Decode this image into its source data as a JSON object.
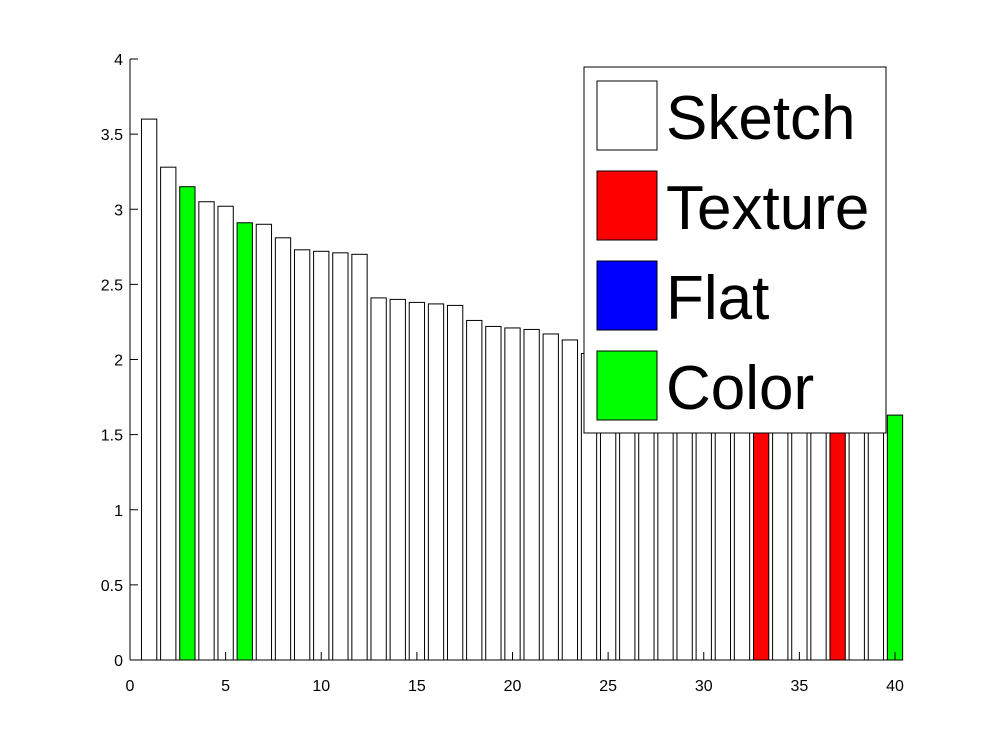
{
  "chart_data": {
    "type": "bar",
    "title": "",
    "xlabel": "",
    "ylabel": "",
    "xlim": [
      0,
      40
    ],
    "ylim": [
      0,
      4
    ],
    "xticks": [
      "0",
      "5",
      "10",
      "15",
      "20",
      "25",
      "30",
      "35",
      "40"
    ],
    "yticks": [
      "0",
      "0.5",
      "1",
      "1.5",
      "2",
      "2.5",
      "3",
      "3.5",
      "4"
    ],
    "grid": false,
    "legend_position": "top-right",
    "legend": [
      {
        "label": "Sketch",
        "color": "#ffffff"
      },
      {
        "label": "Texture",
        "color": "#ff0000"
      },
      {
        "label": "Flat",
        "color": "#0000ff"
      },
      {
        "label": "Color",
        "color": "#00ff00"
      }
    ],
    "categories": [
      1,
      2,
      3,
      4,
      5,
      6,
      7,
      8,
      9,
      10,
      11,
      12,
      13,
      14,
      15,
      16,
      17,
      18,
      19,
      20,
      21,
      22,
      23,
      24,
      25,
      26,
      27,
      28,
      29,
      30,
      31,
      32,
      33,
      34,
      35,
      36,
      37,
      38,
      39,
      40
    ],
    "values": [
      3.6,
      3.28,
      3.15,
      3.05,
      3.02,
      2.91,
      2.9,
      2.81,
      2.73,
      2.72,
      2.71,
      2.7,
      2.41,
      2.4,
      2.38,
      2.37,
      2.36,
      2.26,
      2.22,
      2.21,
      2.2,
      2.17,
      2.13,
      2.04,
      2.0,
      1.98,
      1.95,
      1.92,
      1.9,
      1.88,
      1.85,
      1.82,
      1.8,
      1.78,
      1.75,
      1.72,
      1.7,
      1.68,
      1.66,
      1.63
    ],
    "bar_types": [
      "Sketch",
      "Sketch",
      "Color",
      "Sketch",
      "Sketch",
      "Color",
      "Sketch",
      "Sketch",
      "Sketch",
      "Sketch",
      "Sketch",
      "Sketch",
      "Sketch",
      "Sketch",
      "Sketch",
      "Sketch",
      "Sketch",
      "Sketch",
      "Sketch",
      "Sketch",
      "Sketch",
      "Sketch",
      "Sketch",
      "Sketch",
      "Sketch",
      "Sketch",
      "Sketch",
      "Sketch",
      "Sketch",
      "Sketch",
      "Sketch",
      "Sketch",
      "Texture",
      "Sketch",
      "Sketch",
      "Sketch",
      "Texture",
      "Sketch",
      "Sketch",
      "Color"
    ]
  }
}
